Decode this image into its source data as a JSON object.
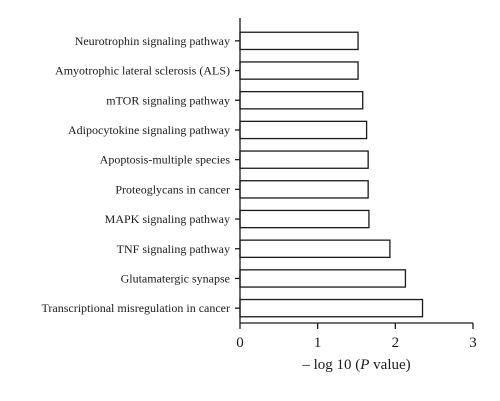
{
  "chart_data": {
    "type": "bar",
    "orientation": "horizontal",
    "categories": [
      "Neurotrophin signaling pathway",
      "Amyotrophic lateral sclerosis (ALS)",
      "mTOR signaling pathway",
      "Adipocytokine signaling pathway",
      "Apoptosis-multiple species",
      "Proteoglycans in cancer",
      "MAPK signaling pathway",
      "TNF signaling pathway",
      "Glutamatergic synapse",
      "Transcriptional misregulation in cancer"
    ],
    "values": [
      1.52,
      1.52,
      1.58,
      1.63,
      1.65,
      1.65,
      1.66,
      1.93,
      2.13,
      2.35
    ],
    "xlim": [
      0,
      3
    ],
    "xticks": [
      0,
      1,
      2,
      3
    ],
    "xlabel_prefix": "– log 10 (",
    "xlabel_italic": "P",
    "xlabel_suffix": " value)",
    "ylabel": "",
    "title": "",
    "grid": false,
    "bar_fill": "#ffffff",
    "bar_stroke": "#1a1a1a"
  }
}
